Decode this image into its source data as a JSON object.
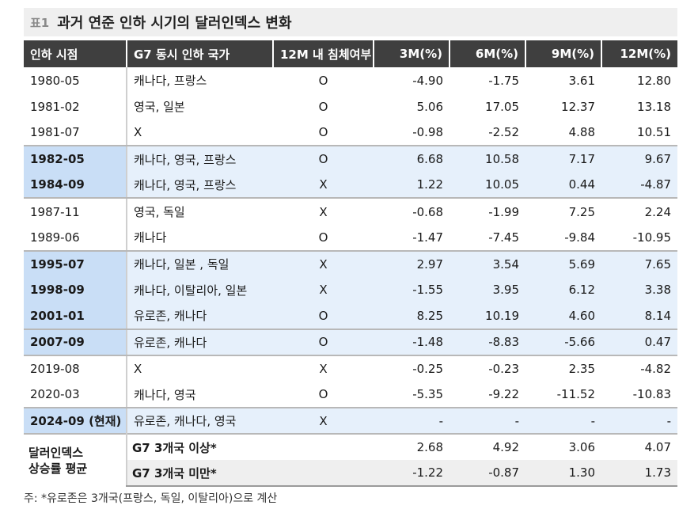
{
  "title": {
    "prefix": "표1",
    "text": "과거 연준 인하 시기의 달러인덱스 변화"
  },
  "headers": {
    "date": "인하 시점",
    "countries": "G7 동시 인하 국가",
    "recession": "12M 내 침체여부",
    "m3": "3M(%)",
    "m6": "6M(%)",
    "m9": "9M(%)",
    "m12": "12M(%)"
  },
  "rows": [
    {
      "date": "1980-05",
      "countries": "캐나다, 프랑스",
      "recession": "O",
      "m3": "-4.90",
      "m6": "-1.75",
      "m9": "3.61",
      "m12": "12.80"
    },
    {
      "date": "1981-02",
      "countries": "영국, 일본",
      "recession": "O",
      "m3": "5.06",
      "m6": "17.05",
      "m9": "12.37",
      "m12": "13.18"
    },
    {
      "date": "1981-07",
      "countries": "X",
      "recession": "O",
      "m3": "-0.98",
      "m6": "-2.52",
      "m9": "4.88",
      "m12": "10.51"
    },
    {
      "date": "1982-05",
      "countries": "캐나다, 영국, 프랑스",
      "recession": "O",
      "m3": "6.68",
      "m6": "10.58",
      "m9": "7.17",
      "m12": "9.67"
    },
    {
      "date": "1984-09",
      "countries": "캐나다, 영국, 프랑스",
      "recession": "X",
      "m3": "1.22",
      "m6": "10.05",
      "m9": "0.44",
      "m12": "-4.87"
    },
    {
      "date": "1987-11",
      "countries": "영국, 독일",
      "recession": "X",
      "m3": "-0.68",
      "m6": "-1.99",
      "m9": "7.25",
      "m12": "2.24"
    },
    {
      "date": "1989-06",
      "countries": "캐나다",
      "recession": "O",
      "m3": "-1.47",
      "m6": "-7.45",
      "m9": "-9.84",
      "m12": "-10.95"
    },
    {
      "date": "1995-07",
      "countries": "캐나다, 일본 , 독일",
      "recession": "X",
      "m3": "2.97",
      "m6": "3.54",
      "m9": "5.69",
      "m12": "7.65"
    },
    {
      "date": "1998-09",
      "countries": "캐나다, 이탈리아, 일본",
      "recession": "X",
      "m3": "-1.55",
      "m6": "3.95",
      "m9": "6.12",
      "m12": "3.38"
    },
    {
      "date": "2001-01",
      "countries": "유로존, 캐나다",
      "recession": "O",
      "m3": "8.25",
      "m6": "10.19",
      "m9": "4.60",
      "m12": "8.14"
    },
    {
      "date": "2007-09",
      "countries": "유로존, 캐나다",
      "recession": "O",
      "m3": "-1.48",
      "m6": "-8.83",
      "m9": "-5.66",
      "m12": "0.47"
    },
    {
      "date": "2019-08",
      "countries": "X",
      "recession": "X",
      "m3": "-0.25",
      "m6": "-0.23",
      "m9": "2.35",
      "m12": "-4.82"
    },
    {
      "date": "2020-03",
      "countries": "캐나다, 영국",
      "recession": "O",
      "m3": "-5.35",
      "m6": "-9.22",
      "m9": "-11.52",
      "m12": "-10.83"
    },
    {
      "date": "2024-09 (현재)",
      "countries": "유로존, 캐나다, 영국",
      "recession": "X",
      "m3": "-",
      "m6": "-",
      "m9": "-",
      "m12": "-"
    }
  ],
  "summary": {
    "label_line1": "달러인덱스",
    "label_line2": "상승률 평균",
    "rows": [
      {
        "name": "G7 3개국 이상*",
        "m3": "2.68",
        "m6": "4.92",
        "m9": "3.06",
        "m12": "4.07"
      },
      {
        "name": "G7 3개국 미만*",
        "m3": "-1.22",
        "m6": "-0.87",
        "m9": "1.30",
        "m12": "1.73"
      }
    ]
  },
  "footnote": "주: *유로존은 3개국(프랑스, 독일, 이탈리아)으로 계산",
  "colors": {
    "header_bg": "#3f3f3f",
    "highlight_row": "#e6f0fb",
    "highlight_date": "#c9def6",
    "title_bg": "#efefef"
  }
}
